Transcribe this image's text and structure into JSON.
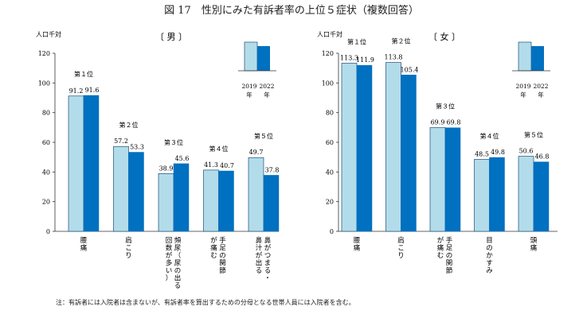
{
  "title": "図 17　性別にみた有訴者率の上位５症状（複数回答）",
  "note": "注：有訴者には入院者は含まないが、有訴者率を算出するための分母となる世帯人員には入院者を含む。",
  "colors": {
    "y2019": "#b3dcea",
    "y2022": "#0070c0",
    "stroke": "#1f4e79"
  },
  "legend": {
    "years": [
      "2019",
      "2022"
    ],
    "unit": [
      "年",
      "年"
    ]
  },
  "chart_data": [
    {
      "type": "bar",
      "panel_title": "〔 男 〕",
      "ylabel": "人口千対",
      "ylim": [
        0,
        120
      ],
      "yticks": [
        "0",
        "20",
        "40",
        "60",
        "80",
        "100",
        "120"
      ],
      "categories": [
        "腰痛",
        "肩こり",
        "頻尿（尿の出る回数が多い）",
        "手足の関節が痛む",
        "鼻がつまる・鼻汁が出る"
      ],
      "category_columns": [
        [
          "腰",
          "痛"
        ],
        [
          "肩",
          "こ",
          "り"
        ],
        [
          "頻",
          "尿",
          "（",
          "尿",
          "の",
          "出",
          "る"
        ],
        [
          "手",
          "足",
          "の",
          "関",
          "節"
        ],
        [
          "鼻",
          "が",
          "つ",
          "ま",
          "る",
          "・"
        ]
      ],
      "category_columns2": [
        [],
        [],
        [
          "回",
          "数",
          "が",
          "多",
          "い",
          "）"
        ],
        [
          "が",
          "痛",
          "む"
        ],
        [
          "鼻",
          "汁",
          "が",
          "出",
          "る"
        ]
      ],
      "ranks": [
        "第１位",
        "第２位",
        "第３位",
        "第４位",
        "第５位"
      ],
      "series": [
        {
          "name": "2019",
          "values": [
            91.2,
            57.2,
            38.9,
            41.3,
            49.7
          ]
        },
        {
          "name": "2022",
          "values": [
            91.6,
            53.3,
            45.6,
            40.7,
            37.8
          ]
        }
      ],
      "value_labels": [
        [
          "91.2",
          "57.2",
          "38.9",
          "41.3",
          "49.7"
        ],
        [
          "91.6",
          "53.3",
          "45.6",
          "40.7",
          "37.8"
        ]
      ]
    },
    {
      "type": "bar",
      "panel_title": "〔 女 〕",
      "ylabel": "人口千対",
      "ylim": [
        0,
        120
      ],
      "yticks": [
        "0",
        "20",
        "40",
        "60",
        "80",
        "100",
        "120"
      ],
      "categories": [
        "腰痛",
        "肩こり",
        "手足の関節が痛む",
        "目のかすみ",
        "頭痛"
      ],
      "category_columns": [
        [
          "腰",
          "痛"
        ],
        [
          "肩",
          "こ",
          "り"
        ],
        [
          "手",
          "足",
          "の",
          "関",
          "節"
        ],
        [
          "目",
          "の",
          "か",
          "す",
          "み"
        ],
        [
          "頭",
          "痛"
        ]
      ],
      "category_columns2": [
        [],
        [],
        [
          "が",
          "痛",
          "む"
        ],
        [],
        []
      ],
      "ranks": [
        "第１位",
        "第２位",
        "第３位",
        "第４位",
        "第５位"
      ],
      "series": [
        {
          "name": "2019",
          "values": [
            113.3,
            113.8,
            69.9,
            48.5,
            50.6
          ]
        },
        {
          "name": "2022",
          "values": [
            111.9,
            105.4,
            69.8,
            49.8,
            46.8
          ]
        }
      ],
      "value_labels": [
        [
          "113.3",
          "113.8",
          "69.9",
          "48.5",
          "50.6"
        ],
        [
          "111.9",
          "105.4",
          "69.8",
          "49.8",
          "46.8"
        ]
      ]
    }
  ]
}
